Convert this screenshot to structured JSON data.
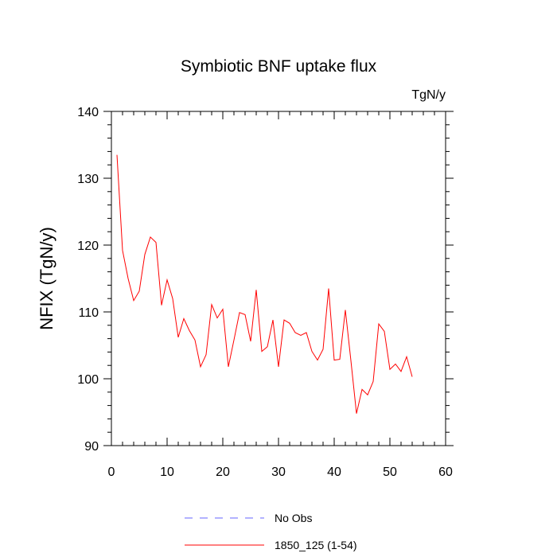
{
  "chart_data": {
    "type": "line",
    "title": "Symbiotic BNF uptake flux",
    "units_label": "TgN/y",
    "xlabel": "",
    "ylabel": "NFIX  (TgN/y)",
    "xlim": [
      0,
      60
    ],
    "ylim": [
      90,
      140
    ],
    "x_ticks": [
      0,
      10,
      20,
      30,
      40,
      50,
      60
    ],
    "y_ticks": [
      90,
      100,
      110,
      120,
      130,
      140
    ],
    "grid": false,
    "legend_position": "bottom",
    "legend": [
      {
        "name": "No Obs",
        "style": "dashed",
        "color": "#6666ff"
      },
      {
        "name": "1850_125 (1-54)",
        "style": "solid",
        "color": "#ff0000"
      }
    ],
    "series": [
      {
        "name": "1850_125 (1-54)",
        "color": "#ff0000",
        "x": [
          1,
          2,
          3,
          4,
          5,
          6,
          7,
          8,
          9,
          10,
          11,
          12,
          13,
          14,
          15,
          16,
          17,
          18,
          19,
          20,
          21,
          22,
          23,
          24,
          25,
          26,
          27,
          28,
          29,
          30,
          31,
          32,
          33,
          34,
          35,
          36,
          37,
          38,
          39,
          40,
          41,
          42,
          43,
          44,
          45,
          46,
          47,
          48,
          49,
          50,
          51,
          52,
          53,
          54
        ],
        "values": [
          133.5,
          119.2,
          115.0,
          111.7,
          113.1,
          118.6,
          121.2,
          120.4,
          111.0,
          114.8,
          112.0,
          106.2,
          109.0,
          107.2,
          105.8,
          101.8,
          103.6,
          111.1,
          109.1,
          110.4,
          101.8,
          105.8,
          109.9,
          109.6,
          105.6,
          113.3,
          104.1,
          104.8,
          108.8,
          101.8,
          108.8,
          108.3,
          106.9,
          106.5,
          106.9,
          104.1,
          102.8,
          104.4,
          113.5,
          102.8,
          102.9,
          110.3,
          102.7,
          94.8,
          98.4,
          97.6,
          99.6,
          108.2,
          107.1,
          101.4,
          102.2,
          101.1,
          103.3,
          100.3
        ]
      }
    ]
  }
}
